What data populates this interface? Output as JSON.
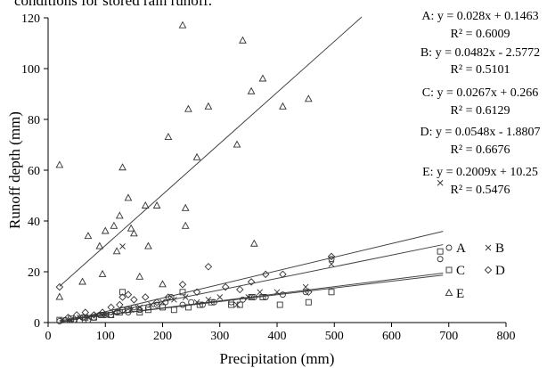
{
  "caption": "conditions for stored rain runoff.",
  "chart_data": {
    "type": "scatter",
    "title": "",
    "xlabel": "Precipitation (mm)",
    "ylabel": "Runoff depth (mm)",
    "xlim": [
      0,
      800
    ],
    "ylim": [
      0,
      120
    ],
    "x_ticks": [
      0,
      100,
      200,
      300,
      400,
      500,
      600,
      700,
      800
    ],
    "y_ticks": [
      0,
      20,
      40,
      60,
      80,
      100,
      120
    ],
    "grid": false,
    "legend_position": "bottom-right",
    "series": [
      {
        "name": "A",
        "marker": "circle",
        "points": [
          [
            20,
            0.5
          ],
          [
            30,
            1
          ],
          [
            45,
            1
          ],
          [
            60,
            2
          ],
          [
            70,
            1
          ],
          [
            80,
            2
          ],
          [
            90,
            3
          ],
          [
            100,
            3
          ],
          [
            110,
            3
          ],
          [
            120,
            4
          ],
          [
            130,
            5
          ],
          [
            140,
            4
          ],
          [
            150,
            6
          ],
          [
            160,
            5
          ],
          [
            175,
            6
          ],
          [
            190,
            7
          ],
          [
            205,
            8
          ],
          [
            215,
            10
          ],
          [
            235,
            7
          ],
          [
            250,
            8
          ],
          [
            270,
            7
          ],
          [
            290,
            8
          ],
          [
            320,
            8
          ],
          [
            340,
            9
          ],
          [
            360,
            10
          ],
          [
            380,
            10
          ],
          [
            410,
            11
          ],
          [
            450,
            12
          ],
          [
            495,
            25
          ],
          [
            685,
            25
          ]
        ],
        "fit": {
          "slope": 0.028,
          "intercept": 0.1463,
          "equation": "A: y = 0.028x + 0.1463",
          "r2": "R² = 0.6009"
        }
      },
      {
        "name": "B",
        "marker": "x",
        "points": [
          [
            25,
            1
          ],
          [
            40,
            1
          ],
          [
            55,
            2
          ],
          [
            70,
            2
          ],
          [
            85,
            3
          ],
          [
            100,
            3
          ],
          [
            115,
            4
          ],
          [
            130,
            30
          ],
          [
            145,
            5
          ],
          [
            160,
            6
          ],
          [
            180,
            7
          ],
          [
            200,
            8
          ],
          [
            220,
            9
          ],
          [
            240,
            10
          ],
          [
            260,
            8
          ],
          [
            280,
            9
          ],
          [
            300,
            10
          ],
          [
            330,
            7
          ],
          [
            350,
            10
          ],
          [
            370,
            12
          ],
          [
            400,
            12
          ],
          [
            450,
            14
          ],
          [
            495,
            23
          ],
          [
            685,
            55
          ]
        ],
        "fit": {
          "slope": 0.0482,
          "intercept": -2.5772,
          "equation": "B: y = 0.0482x - 2.5772",
          "r2": "R² = 0.5101"
        }
      },
      {
        "name": "C",
        "marker": "square",
        "points": [
          [
            20,
            1
          ],
          [
            40,
            1.5
          ],
          [
            55,
            1
          ],
          [
            65,
            2
          ],
          [
            80,
            2
          ],
          [
            95,
            3
          ],
          [
            110,
            3
          ],
          [
            125,
            4
          ],
          [
            130,
            12
          ],
          [
            140,
            5
          ],
          [
            160,
            4
          ],
          [
            175,
            5
          ],
          [
            200,
            6
          ],
          [
            220,
            5
          ],
          [
            235,
            12
          ],
          [
            245,
            6
          ],
          [
            265,
            7
          ],
          [
            285,
            8
          ],
          [
            320,
            7
          ],
          [
            335,
            7
          ],
          [
            355,
            10
          ],
          [
            375,
            10
          ],
          [
            405,
            7
          ],
          [
            455,
            8
          ],
          [
            495,
            12
          ],
          [
            685,
            28
          ]
        ],
        "fit": {
          "slope": 0.0267,
          "intercept": 0.266,
          "equation": "C: y = 0.0267x + 0.266",
          "r2": "R² = 0.6129"
        }
      },
      {
        "name": "D",
        "marker": "diamond",
        "points": [
          [
            20,
            14
          ],
          [
            35,
            2
          ],
          [
            50,
            3
          ],
          [
            65,
            4
          ],
          [
            80,
            3
          ],
          [
            95,
            4
          ],
          [
            110,
            6
          ],
          [
            125,
            7
          ],
          [
            130,
            10
          ],
          [
            140,
            11
          ],
          [
            150,
            9
          ],
          [
            170,
            10
          ],
          [
            190,
            8
          ],
          [
            210,
            10
          ],
          [
            235,
            15
          ],
          [
            260,
            12
          ],
          [
            280,
            22
          ],
          [
            310,
            14
          ],
          [
            335,
            13
          ],
          [
            355,
            16
          ],
          [
            380,
            19
          ],
          [
            410,
            19
          ],
          [
            455,
            12
          ],
          [
            495,
            26
          ]
        ],
        "fit": {
          "slope": 0.0548,
          "intercept": -1.8807,
          "equation": "D: y = 0.0548x - 1.8807",
          "r2": "R² = 0.6676"
        }
      },
      {
        "name": "E",
        "marker": "triangle",
        "points": [
          [
            20,
            62
          ],
          [
            20,
            10
          ],
          [
            60,
            16
          ],
          [
            70,
            34
          ],
          [
            90,
            30
          ],
          [
            95,
            19
          ],
          [
            100,
            36
          ],
          [
            115,
            38
          ],
          [
            120,
            28
          ],
          [
            125,
            42
          ],
          [
            130,
            61
          ],
          [
            140,
            49
          ],
          [
            145,
            37
          ],
          [
            150,
            35
          ],
          [
            160,
            18
          ],
          [
            170,
            46
          ],
          [
            175,
            30
          ],
          [
            190,
            46
          ],
          [
            200,
            15
          ],
          [
            210,
            73
          ],
          [
            235,
            117
          ],
          [
            240,
            45
          ],
          [
            240,
            38
          ],
          [
            245,
            84
          ],
          [
            260,
            65
          ],
          [
            280,
            85
          ],
          [
            330,
            70
          ],
          [
            340,
            111
          ],
          [
            355,
            91
          ],
          [
            360,
            31
          ],
          [
            375,
            96
          ],
          [
            410,
            85
          ],
          [
            455,
            88
          ]
        ],
        "fit": {
          "slope": 0.2009,
          "intercept": 10.25,
          "equation": "E: y = 0.2009x + 10.25",
          "r2": "R² = 0.5476"
        }
      }
    ]
  }
}
